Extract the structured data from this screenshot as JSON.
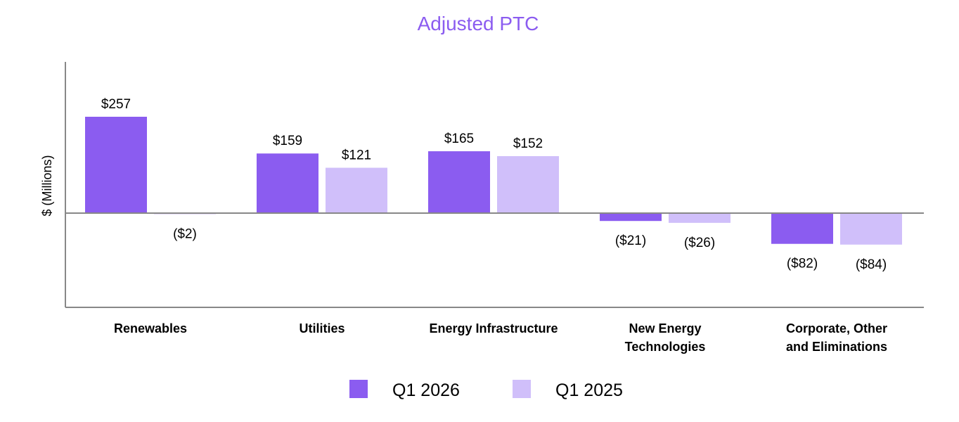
{
  "chart_data": {
    "type": "bar",
    "title": "Adjusted PTC",
    "ylabel": "$ (Millions)",
    "xlabel": "",
    "categories": [
      [
        "Renewables"
      ],
      [
        "Utilities"
      ],
      [
        "Energy Infrastructure"
      ],
      [
        "New Energy",
        "Technologies"
      ],
      [
        "Corporate, Other",
        "and Eliminations"
      ]
    ],
    "series": [
      {
        "name": "Q1 2026",
        "color": "#8b5cf0",
        "values": [
          257,
          159,
          165,
          -21,
          -82
        ],
        "labels": [
          "$257",
          "$159",
          "$165",
          "($21)",
          "($82)"
        ]
      },
      {
        "name": "Q1 2025",
        "color": "#d0bffa",
        "values": [
          -2,
          121,
          152,
          -26,
          -84
        ],
        "labels": [
          "($2)",
          "$121",
          "$152",
          "($26)",
          "($84)"
        ]
      }
    ],
    "ylim": [
      -250,
      400
    ],
    "grid": false,
    "legend_position": "bottom",
    "colors": {
      "title": "#8b5cf0",
      "axis": "#888888"
    }
  }
}
